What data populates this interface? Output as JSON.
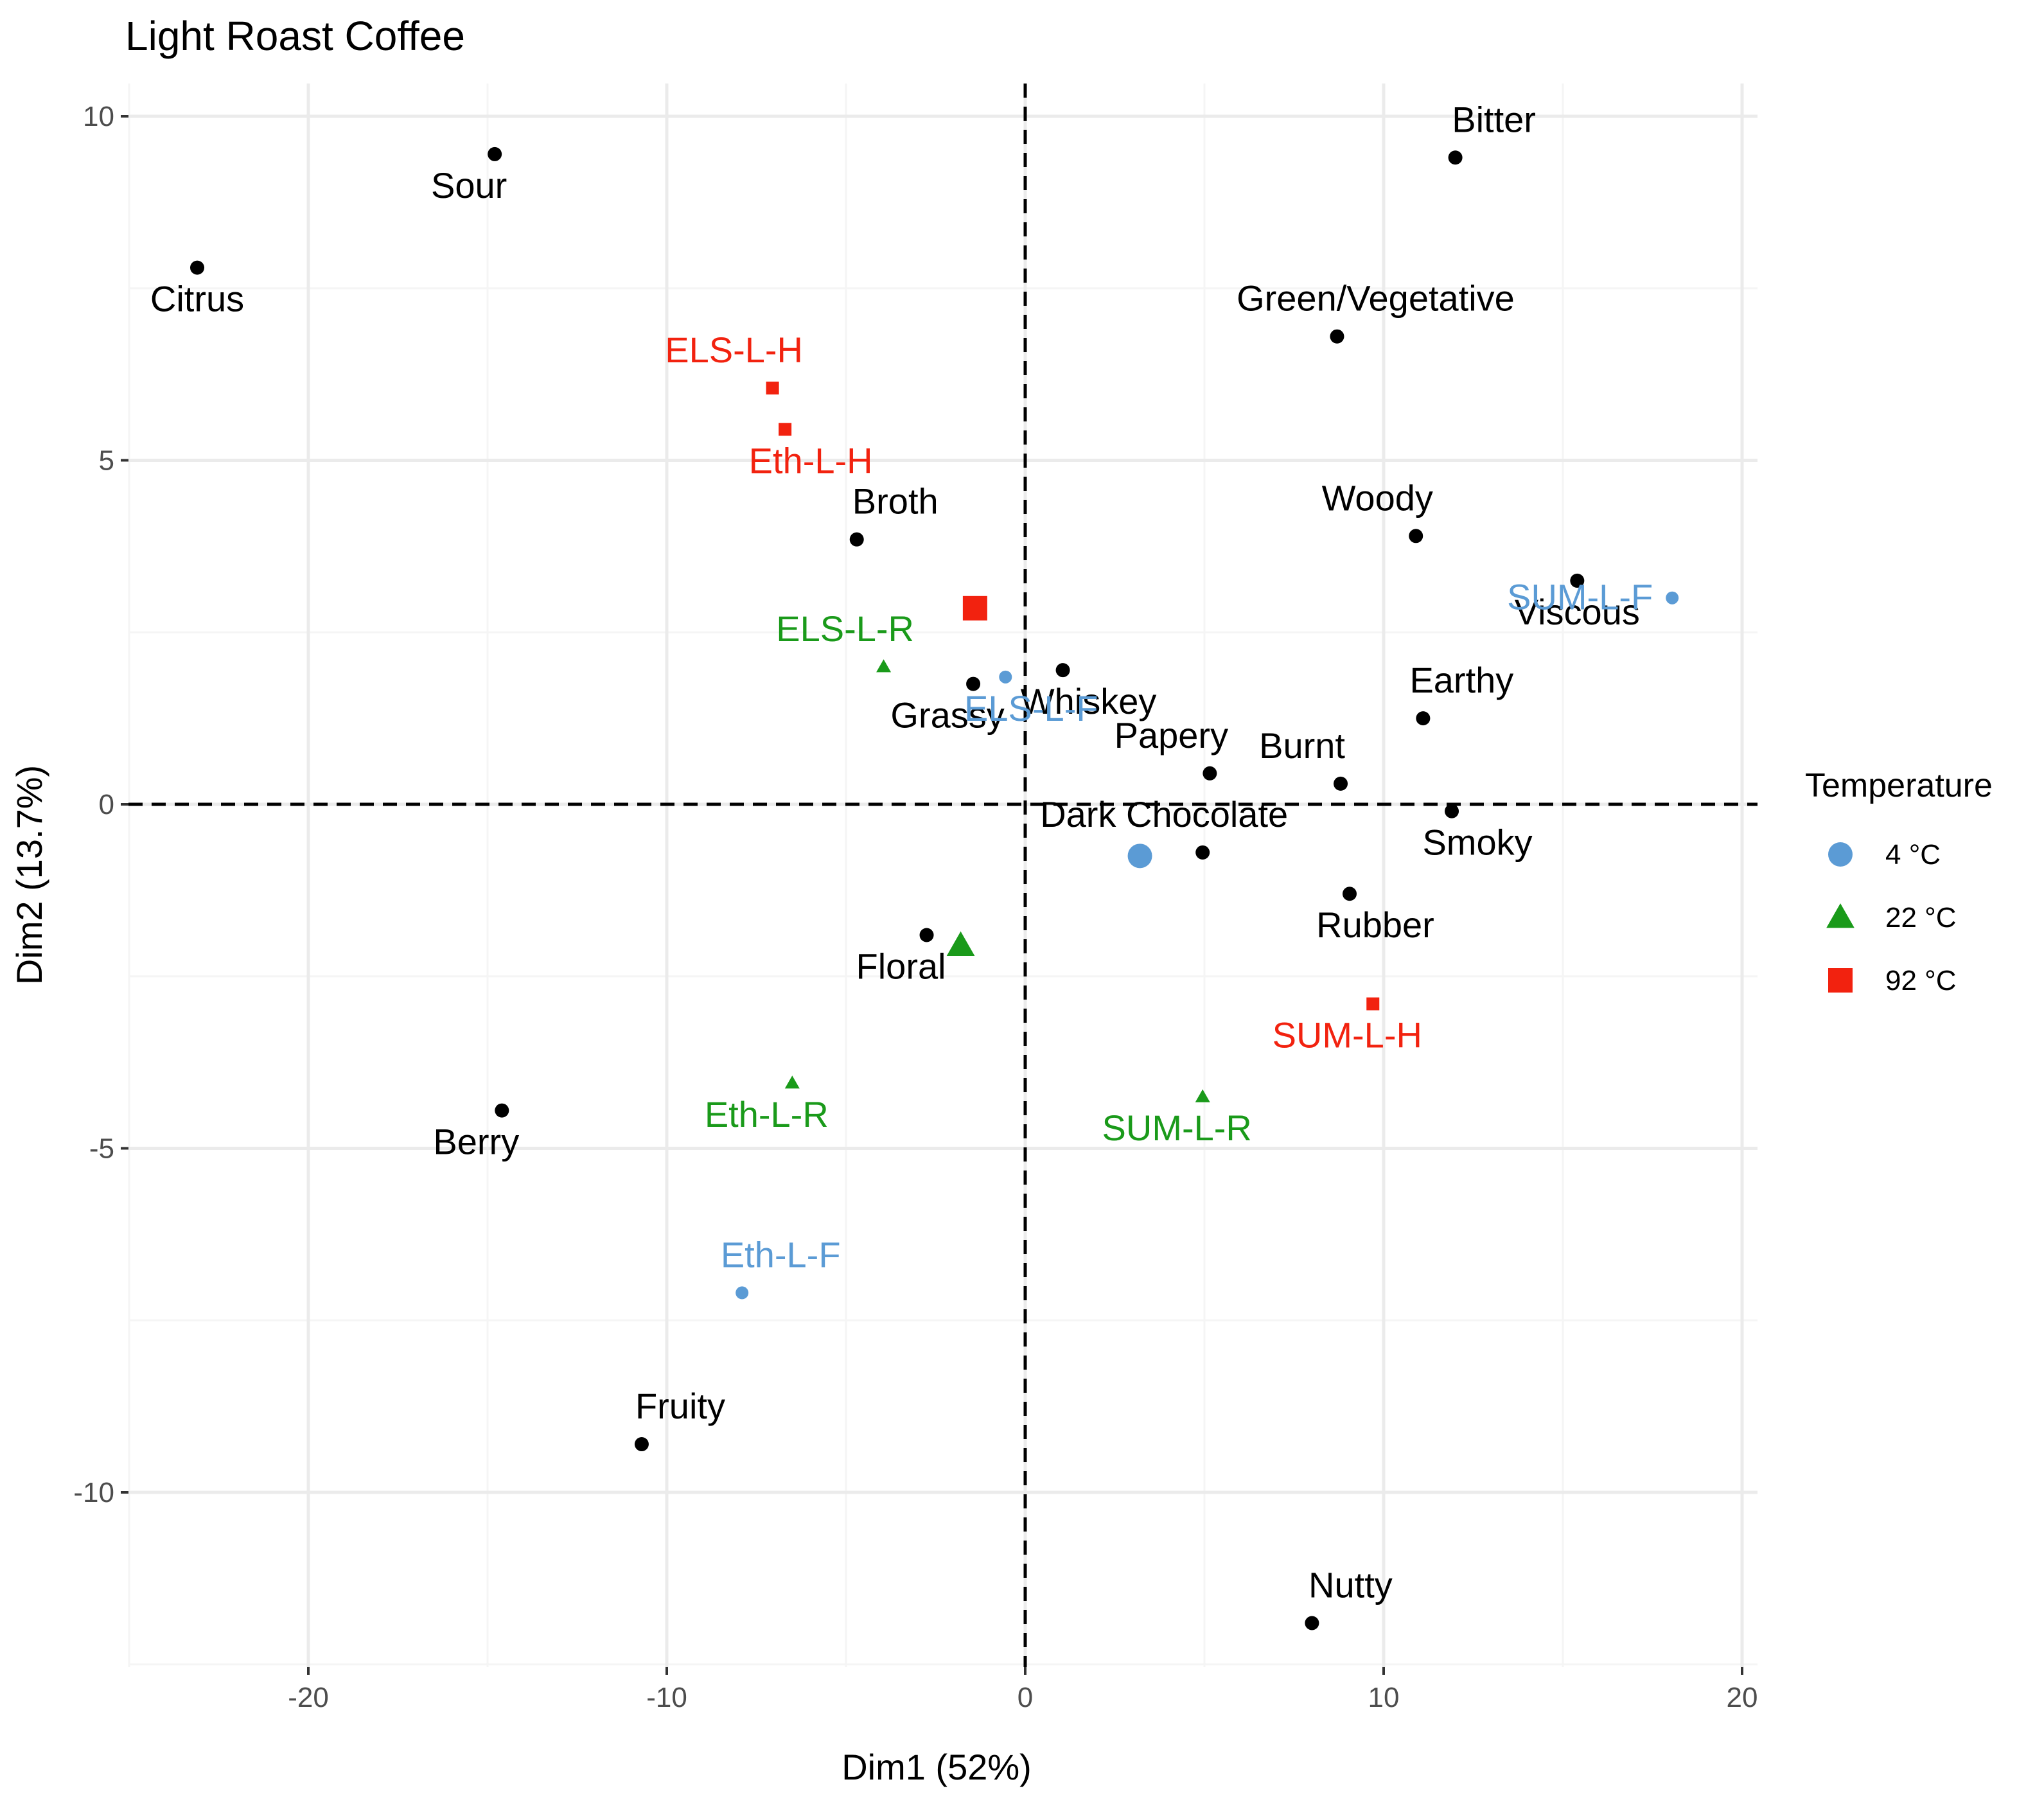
{
  "chart_data": {
    "type": "scatter",
    "title": "Light Roast Coffee",
    "xlabel": "Dim1 (52%)",
    "ylabel": "Dim2 (13.7%)",
    "xlim": [
      -25,
      20
    ],
    "ylim": [
      -12.5,
      10.5
    ],
    "x_ticks": [
      -20,
      -10,
      0,
      10,
      20
    ],
    "y_ticks": [
      -10,
      -5,
      0,
      5,
      10
    ],
    "grid": true,
    "reference_lines": {
      "x": 0,
      "y": 0,
      "style": "dashed"
    },
    "legend": {
      "title": "Temperature",
      "position": "right",
      "entries": [
        {
          "label": "4 °C",
          "color": "#5b9bd5",
          "shape": "circle"
        },
        {
          "label": "22 °C",
          "color": "#1a9a1a",
          "shape": "triangle"
        },
        {
          "label": "92 °C",
          "color": "#f2220f",
          "shape": "square"
        }
      ]
    },
    "attributes": [
      {
        "label": "Sour",
        "x": -14.8,
        "y": 9.45
      },
      {
        "label": "Citrus",
        "x": -23.1,
        "y": 7.8
      },
      {
        "label": "Bitter",
        "x": 12.0,
        "y": 9.4
      },
      {
        "label": "Green/Vegetative",
        "x": 8.7,
        "y": 6.8
      },
      {
        "label": "Broth",
        "x": -4.7,
        "y": 3.85
      },
      {
        "label": "Woody",
        "x": 10.9,
        "y": 3.9
      },
      {
        "label": "Viscous",
        "x": 15.4,
        "y": 3.25
      },
      {
        "label": "Whiskey",
        "x": 1.05,
        "y": 1.95
      },
      {
        "label": "Grassy",
        "x": -1.45,
        "y": 1.75
      },
      {
        "label": "Earthy",
        "x": 11.1,
        "y": 1.25
      },
      {
        "label": "Papery",
        "x": 5.15,
        "y": 0.45
      },
      {
        "label": "Burnt",
        "x": 8.8,
        "y": 0.3
      },
      {
        "label": "Smoky",
        "x": 11.9,
        "y": -0.1
      },
      {
        "label": "Dark Chocolate",
        "x": 4.95,
        "y": -0.7
      },
      {
        "label": "Rubber",
        "x": 9.05,
        "y": -1.3
      },
      {
        "label": "Floral",
        "x": -2.75,
        "y": -1.9
      },
      {
        "label": "Berry",
        "x": -14.6,
        "y": -4.45
      },
      {
        "label": "Fruity",
        "x": -10.7,
        "y": -9.3
      },
      {
        "label": "Nutty",
        "x": 8.0,
        "y": -11.9
      }
    ],
    "series": [
      {
        "name": "4 °C",
        "shape": "circle",
        "color": "#5b9bd5",
        "samples": [
          {
            "label": "SUM-L-F",
            "x": 18.05,
            "y": 3.0
          },
          {
            "label": "ELS-L-F",
            "x": -0.55,
            "y": 1.85
          },
          {
            "label": "Eth-L-F",
            "x": -7.9,
            "y": -7.1
          }
        ],
        "centroid": {
          "x": 3.2,
          "y": -0.75
        }
      },
      {
        "name": "22 °C",
        "shape": "triangle",
        "color": "#1a9a1a",
        "samples": [
          {
            "label": "ELS-L-R",
            "x": -3.95,
            "y": 2.0
          },
          {
            "label": "Eth-L-R",
            "x": -6.5,
            "y": -4.05
          },
          {
            "label": "SUM-L-R",
            "x": 4.95,
            "y": -4.25
          }
        ],
        "centroid": {
          "x": -1.8,
          "y": -2.05
        }
      },
      {
        "name": "92 °C",
        "shape": "square",
        "color": "#f2220f",
        "samples": [
          {
            "label": "ELS-L-H",
            "x": -7.05,
            "y": 6.05
          },
          {
            "label": "Eth-L-H",
            "x": -6.7,
            "y": 5.45
          },
          {
            "label": "SUM-L-H",
            "x": 9.7,
            "y": -2.9
          }
        ],
        "centroid": {
          "x": -1.4,
          "y": 2.85
        }
      }
    ]
  }
}
